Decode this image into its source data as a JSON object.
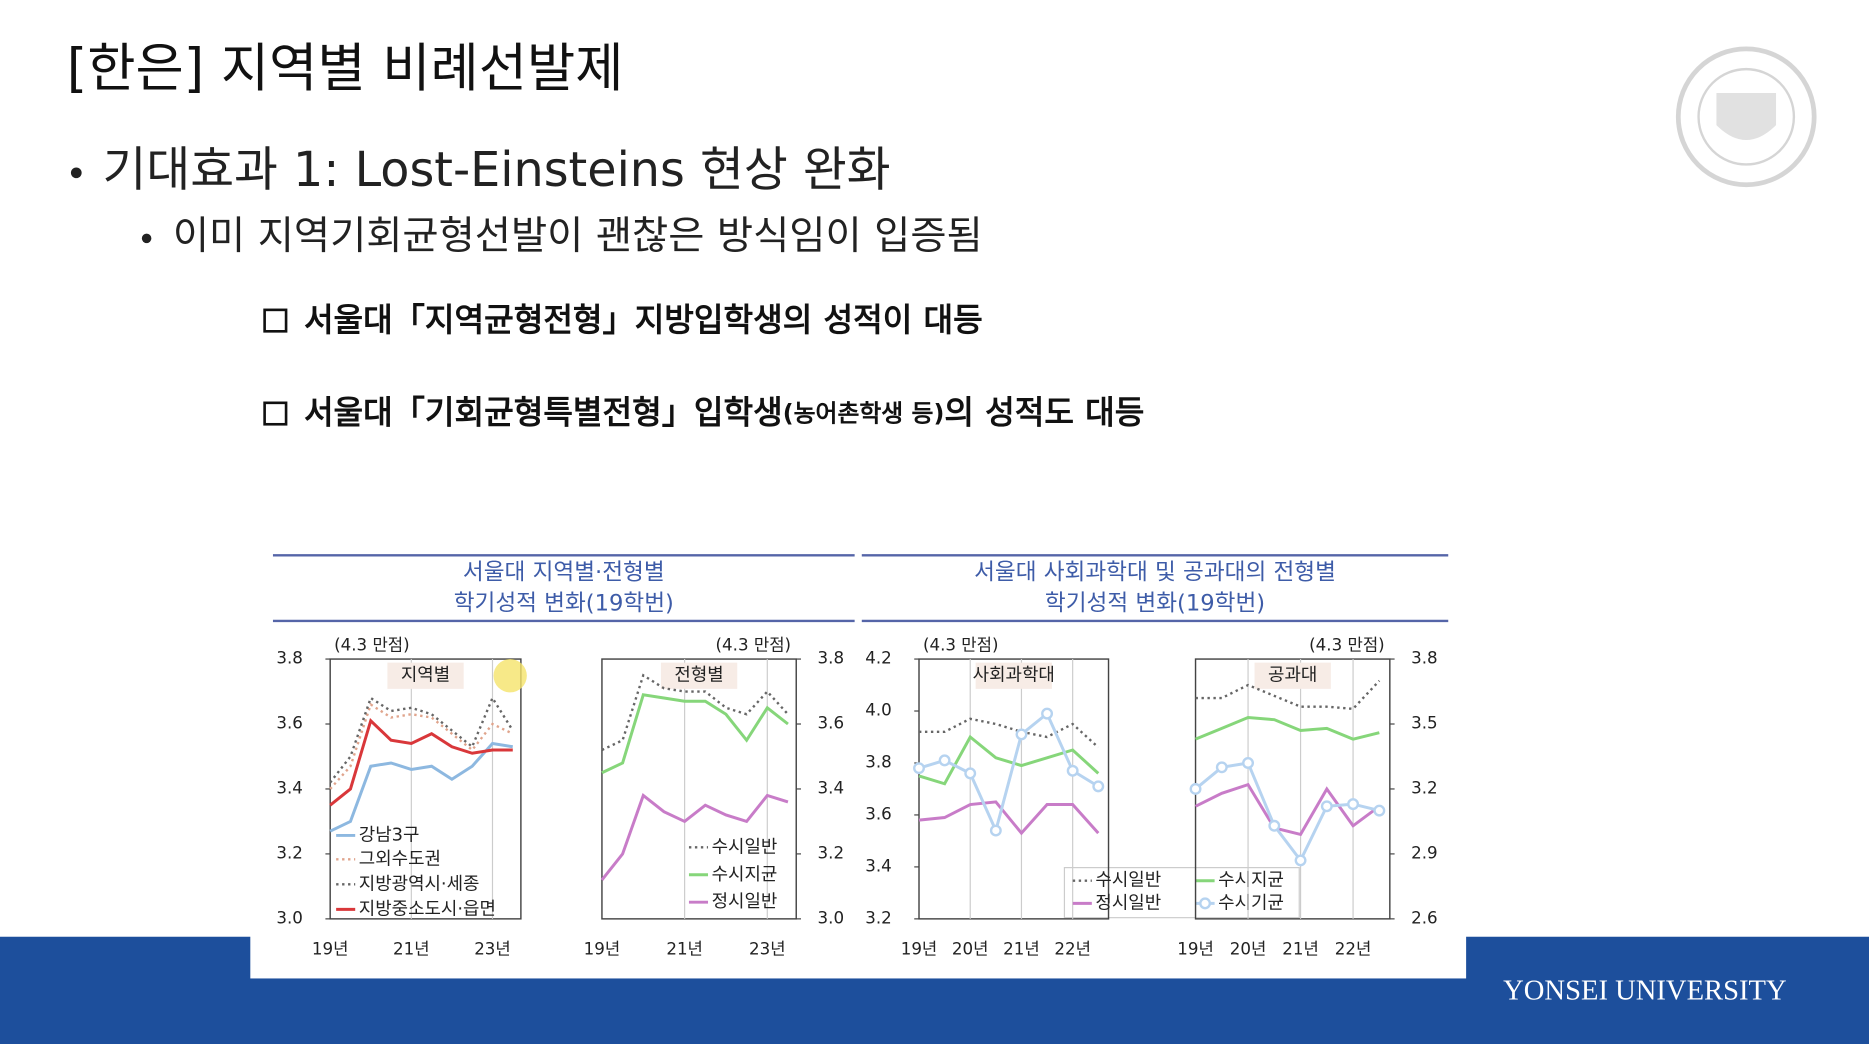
{
  "title": "[한은] 지역별 비례선발제",
  "bullets": [
    "기대효과 1: Lost-Einsteins 현상 완화",
    "이미 지역기회균형선발이 괜찮은 방식임이 입증됨"
  ],
  "boxes": [
    {
      "parts": [
        "서울대「지역균형전형」지방입학생의 성적이 대등"
      ]
    },
    {
      "parts": [
        "서울대「기회균형특별전형」입학생",
        "(농어촌학생 등)",
        "의 성적도 대등"
      ]
    }
  ],
  "figure_titles": [
    [
      "서울대 지역별·전형별",
      "학기성적 변화(19학번)"
    ],
    [
      "서울대 사회과학대 및 공과대의 전형별",
      "학기성적 변화(19학번)"
    ]
  ],
  "chart_data": [
    {
      "type": "line",
      "title": "지역별",
      "unit": "(4.3 만점)",
      "categories": [
        "19년",
        null,
        null,
        null,
        "21년",
        null,
        null,
        null,
        "23년",
        null
      ],
      "ylim": [
        3.0,
        3.8
      ],
      "yticks": [
        {
          "value": 3.0,
          "label": "3.0"
        },
        3.2,
        3.4,
        3.6,
        3.8
      ],
      "yaxis": "left",
      "series": [
        {
          "name": "강남3구",
          "color": "#8db8e0",
          "style": "solid",
          "values": [
            3.27,
            3.3,
            3.47,
            3.48,
            3.46,
            3.47,
            3.43,
            3.47,
            3.54,
            3.53
          ]
        },
        {
          "name": "그외수도권",
          "color": "#e0a48c",
          "style": "dotted",
          "values": [
            3.4,
            3.47,
            3.66,
            3.62,
            3.63,
            3.62,
            3.57,
            3.52,
            3.6,
            3.57
          ]
        },
        {
          "name": "지방광역시·세종",
          "color": "#666666",
          "style": "dotted",
          "values": [
            3.42,
            3.5,
            3.68,
            3.64,
            3.65,
            3.63,
            3.58,
            3.53,
            3.68,
            3.58
          ]
        },
        {
          "name": "지방중소도시·읍면",
          "color": "#d9373a",
          "style": "solid",
          "values": [
            3.35,
            3.4,
            3.61,
            3.55,
            3.54,
            3.57,
            3.53,
            3.51,
            3.52,
            3.52
          ]
        }
      ]
    },
    {
      "type": "line",
      "title": "전형별",
      "unit": "(4.3 만점)",
      "categories": [
        "19년",
        null,
        null,
        null,
        "21년",
        null,
        null,
        null,
        "23년",
        null
      ],
      "ylim": [
        3.0,
        3.8
      ],
      "yticks": [
        {
          "value": 3.0,
          "label": "3.0"
        },
        3.2,
        3.4,
        3.6,
        3.8
      ],
      "yaxis": "right",
      "series": [
        {
          "name": "수시일반",
          "color": "#666666",
          "style": "dotted",
          "values": [
            3.52,
            3.55,
            3.75,
            3.71,
            3.7,
            3.7,
            3.65,
            3.63,
            3.7,
            3.63
          ]
        },
        {
          "name": "수시지균",
          "color": "#86d67a",
          "style": "solid",
          "values": [
            3.45,
            3.48,
            3.69,
            3.68,
            3.67,
            3.67,
            3.63,
            3.55,
            3.65,
            3.6
          ]
        },
        {
          "name": "정시일반",
          "color": "#c87cc8",
          "style": "solid",
          "values": [
            3.12,
            3.2,
            3.38,
            3.33,
            3.3,
            3.35,
            3.32,
            3.3,
            3.38,
            3.36
          ]
        }
      ]
    },
    {
      "type": "line",
      "title": "사회과학대",
      "unit": "(4.3 만점)",
      "categories": [
        "19년",
        null,
        "20년",
        null,
        "21년",
        null,
        "22년",
        null
      ],
      "ylim": [
        3.2,
        4.2
      ],
      "yticks": [
        3.2,
        3.4,
        3.6,
        3.8,
        {
          "value": 4.0,
          "label": "4.0"
        },
        4.2
      ],
      "yaxis": "left",
      "series": [
        {
          "name": "수시일반",
          "color": "#666666",
          "style": "dotted",
          "values": [
            3.92,
            3.92,
            3.97,
            3.95,
            3.92,
            3.9,
            3.95,
            3.86
          ]
        },
        {
          "name": "수시지균",
          "color": "#86d67a",
          "style": "solid",
          "values": [
            3.75,
            3.72,
            3.9,
            3.82,
            3.79,
            3.82,
            3.85,
            3.76
          ]
        },
        {
          "name": "정시일반",
          "color": "#c87cc8",
          "style": "solid",
          "values": [
            3.58,
            3.59,
            3.64,
            3.65,
            3.53,
            3.64,
            3.64,
            3.53
          ]
        },
        {
          "name": "수시기균",
          "color": "#b6d3f0",
          "style": "circle",
          "values": [
            3.78,
            3.81,
            3.76,
            3.54,
            3.91,
            3.99,
            3.77,
            3.71
          ]
        }
      ]
    },
    {
      "type": "line",
      "title": "공과대",
      "unit": "(4.3 만점)",
      "categories": [
        "19년",
        null,
        "20년",
        null,
        "21년",
        null,
        "22년",
        null
      ],
      "ylim": [
        2.6,
        3.8
      ],
      "yticks": [
        2.6,
        2.9,
        3.2,
        3.5,
        3.8
      ],
      "yaxis": "right",
      "series": [
        {
          "color": "#666666",
          "style": "dotted",
          "values": [
            3.62,
            3.62,
            3.68,
            3.63,
            3.58,
            3.58,
            3.57,
            3.7
          ]
        },
        {
          "color": "#86d67a",
          "style": "solid",
          "values": [
            3.43,
            3.48,
            3.53,
            3.52,
            3.47,
            3.48,
            3.43,
            3.46
          ]
        },
        {
          "color": "#c87cc8",
          "style": "solid",
          "values": [
            3.12,
            3.18,
            3.22,
            3.02,
            2.99,
            3.2,
            3.03,
            3.12
          ]
        },
        {
          "color": "#b6d3f0",
          "style": "circle",
          "values": [
            3.2,
            3.3,
            3.32,
            3.03,
            2.87,
            3.12,
            3.13,
            3.1
          ]
        }
      ]
    }
  ],
  "footer": "YONSEI UNIVERSITY"
}
